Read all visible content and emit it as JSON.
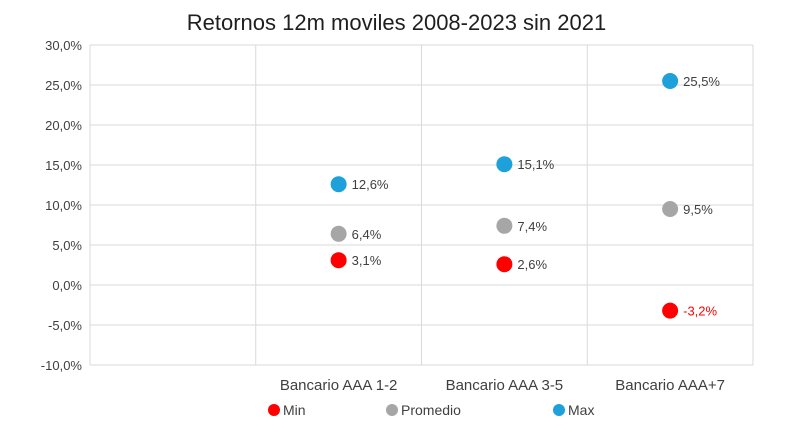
{
  "chart_data": {
    "type": "scatter",
    "title": "Retornos 12m moviles 2008-2023 sin 2021",
    "xlabel": "",
    "ylabel": "",
    "categories": [
      "",
      "Bancario AAA 1-2",
      "Bancario AAA 3-5",
      "Bancario AAA+7"
    ],
    "ylim": [
      -10,
      30
    ],
    "yticks": [
      "30,0%",
      "25,0%",
      "20,0%",
      "15,0%",
      "10,0%",
      "5,0%",
      "0,0%",
      "-5,0%",
      "-10,0%"
    ],
    "grid": true,
    "legend_position": "bottom",
    "series": [
      {
        "name": "Min",
        "color": "#ff0000",
        "values": [
          null,
          3.1,
          2.6,
          -3.2
        ],
        "labels": [
          "",
          "3,1%",
          "2,6%",
          "-3,2%"
        ],
        "label_colors": [
          "",
          "#404040",
          "#404040",
          "#ff0000"
        ]
      },
      {
        "name": "Promedio",
        "color": "#a6a6a6",
        "values": [
          null,
          6.4,
          7.4,
          9.5
        ],
        "labels": [
          "",
          "6,4%",
          "7,4%",
          "9,5%"
        ],
        "label_colors": [
          "",
          "#404040",
          "#404040",
          "#404040"
        ]
      },
      {
        "name": "Max",
        "color": "#1ea0db",
        "values": [
          null,
          12.6,
          15.1,
          25.5
        ],
        "labels": [
          "",
          "12,6%",
          "15,1%",
          "25,5%"
        ],
        "label_colors": [
          "",
          "#404040",
          "#404040",
          "#404040"
        ]
      }
    ]
  }
}
